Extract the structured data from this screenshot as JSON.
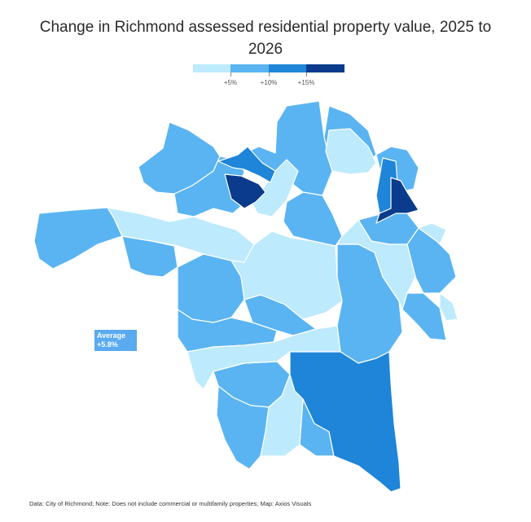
{
  "title": "Change in Richmond assessed residential property value, 2025 to 2026",
  "legend": {
    "colors": [
      "#bdeafd",
      "#5ab4f2",
      "#1e85d8",
      "#0b3b8c"
    ],
    "labels": [
      "+5%",
      "+10%",
      "+15%"
    ]
  },
  "average": {
    "label": "Average",
    "value": "+5.8%"
  },
  "footer": "Data: City of Richmond; Note: Does not include commercial or multifamily properties; Map: Axios Visuals",
  "colors": {
    "light": "#bdeafd",
    "mid": "#5ab4f2",
    "high": "#1e85d8",
    "highest": "#0b3b8c",
    "border": "#ffffff"
  }
}
